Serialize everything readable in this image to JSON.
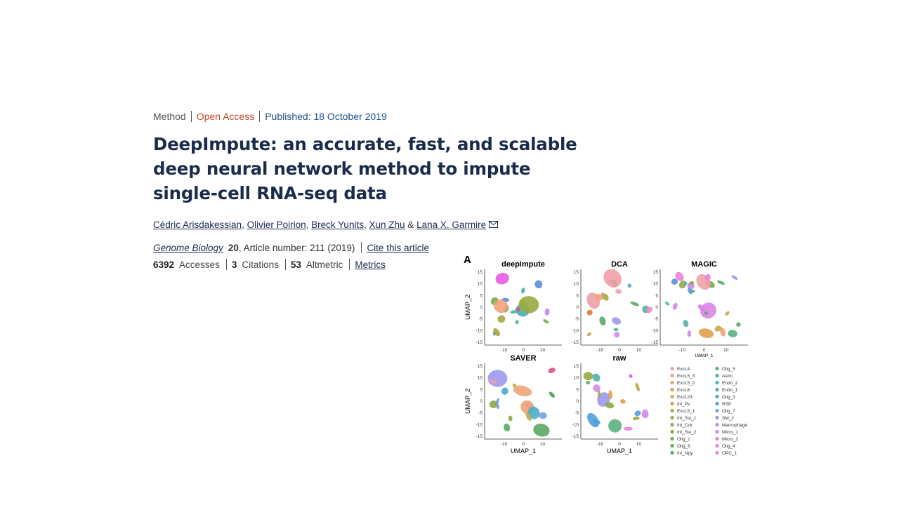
{
  "meta": {
    "type": "Method",
    "access": "Open Access",
    "published": "Published: 18 October 2019"
  },
  "title": "DeepImpute: an accurate, fast, and scalable deep neural network method to impute single-cell RNA-seq data",
  "authors": [
    "Cédric Arisdakessian",
    "Olivier Poirion",
    "Breck Yunits",
    "Xun Zhu",
    "Lana X. Garmire"
  ],
  "authors_separator": ",",
  "authors_and": "&",
  "journal": {
    "name": "Genome Biology",
    "volume": "20",
    "article": ", Article number: 211 (2019)",
    "cite": "Cite this article"
  },
  "metrics": {
    "accesses_count": "6392",
    "accesses_label": "Accesses",
    "citations_count": "3",
    "citations_label": "Citations",
    "altmetric_count": "53",
    "altmetric_label": "Altmetric",
    "metrics_link": "Metrics"
  },
  "figure": {
    "panel_letter": "A",
    "panels": [
      {
        "title": "deepImpute",
        "ylabel": "UMAP_2",
        "xlabel": ""
      },
      {
        "title": "DCA",
        "ylabel": "",
        "xlabel": ""
      },
      {
        "title": "MAGIC",
        "ylabel": "",
        "xlabel": "UMAP_1"
      },
      {
        "title": "SAVER",
        "ylabel": "UMAP_2",
        "xlabel": "UMAP_1"
      },
      {
        "title": "raw",
        "ylabel": "",
        "xlabel": "UMAP_1"
      }
    ],
    "y_ticks": [
      "15",
      "10",
      "5",
      "0",
      "-5",
      "-10",
      "-15"
    ],
    "x_ticks": [
      "-10",
      "0",
      "10"
    ],
    "legend_col1": [
      "ExcL4",
      "ExcL5_3",
      "ExcL5_2",
      "ExcL6",
      "ExcL23",
      "Int_Pv",
      "ExcL5_1",
      "Int_Sst_1",
      "Int_Cck",
      "Int_Sst_2",
      "Olig_1",
      "Olig_6",
      "Int_Npy"
    ],
    "legend_col2": [
      "Olig_5",
      "Astro",
      "Endo_2",
      "Endo_1",
      "Olig_3",
      "RSP",
      "Olig_7",
      "SM_2",
      "Macrophage",
      "Micro_1",
      "Micro_2",
      "Olig_4",
      "OPC_1"
    ],
    "colors_col1": [
      "#f0a0a8",
      "#f29e8e",
      "#efa27a",
      "#e89a5a",
      "#e0a050",
      "#c8a848",
      "#b0a840",
      "#a8aa40",
      "#98aa40",
      "#88aa44",
      "#7aaa48",
      "#6aac54",
      "#5aaa64"
    ],
    "colors_col2": [
      "#5ab080",
      "#50b4a0",
      "#4cb4b0",
      "#4aaec0",
      "#4aa8cc",
      "#50a0dc",
      "#7aa0e8",
      "#9c98ec",
      "#b88ef0",
      "#cc88f0",
      "#dc84e8",
      "#e884dc",
      "#ee88cc"
    ]
  }
}
